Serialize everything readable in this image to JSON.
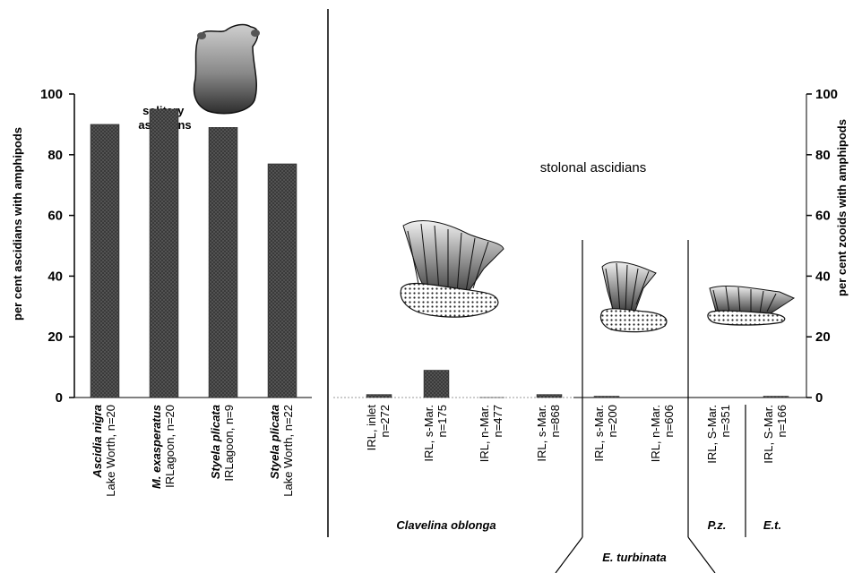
{
  "chart_data": {
    "type": "bar",
    "ylim": [
      0,
      100
    ],
    "yticks": [
      0,
      20,
      40,
      60,
      80,
      100
    ],
    "y_axis_left": "per cent ascidians with amphipods",
    "y_axis_right": "per cent zooids with amphipods",
    "panels": [
      {
        "label": "solitary ascidians",
        "categories": [
          {
            "name": "Ascidia nigra",
            "site": "Lake Worth, n=20",
            "value": 90
          },
          {
            "name": "M. exasperatus",
            "site": "IRLagoon, n=20",
            "value": 95
          },
          {
            "name": "Styela plicata",
            "site": "IRLagoon, n=9",
            "value": 89
          },
          {
            "name": "Styela plicata",
            "site": "Lake Worth, n=22",
            "value": 77
          }
        ]
      },
      {
        "label": "stolonal ascidians",
        "categories": [
          {
            "l1": "IRL, inlet",
            "l2": "n=272",
            "value": 1,
            "group": "Clavelina oblonga"
          },
          {
            "l1": "IRL, s-Mar.",
            "l2": "n=175",
            "value": 9,
            "group": "Clavelina oblonga"
          },
          {
            "l1": "IRL, n-Mar.",
            "l2": "n=477",
            "value": 0,
            "group": "Clavelina oblonga"
          },
          {
            "l1": "IRL, s-Mar.",
            "l2": "n=868",
            "value": 1,
            "group": "Clavelina oblonga"
          },
          {
            "l1": "IRL, s-Mar.",
            "l2": "n=200",
            "value": 0.3,
            "group": "E. turbinata"
          },
          {
            "l1": "IRL, n-Mar.",
            "l2": "n=606",
            "value": 0,
            "group": "E. turbinata"
          },
          {
            "l1": "IRL, S-Mar.",
            "l2": "n=351",
            "value": 0,
            "group": "P.z."
          },
          {
            "l1": "IRL, S-Mar.",
            "l2": "n=166",
            "value": 0.3,
            "group": "E.t."
          }
        ],
        "groups": [
          "Clavelina oblonga",
          "E. turbinata",
          "P.z.",
          "E.t."
        ]
      }
    ]
  }
}
